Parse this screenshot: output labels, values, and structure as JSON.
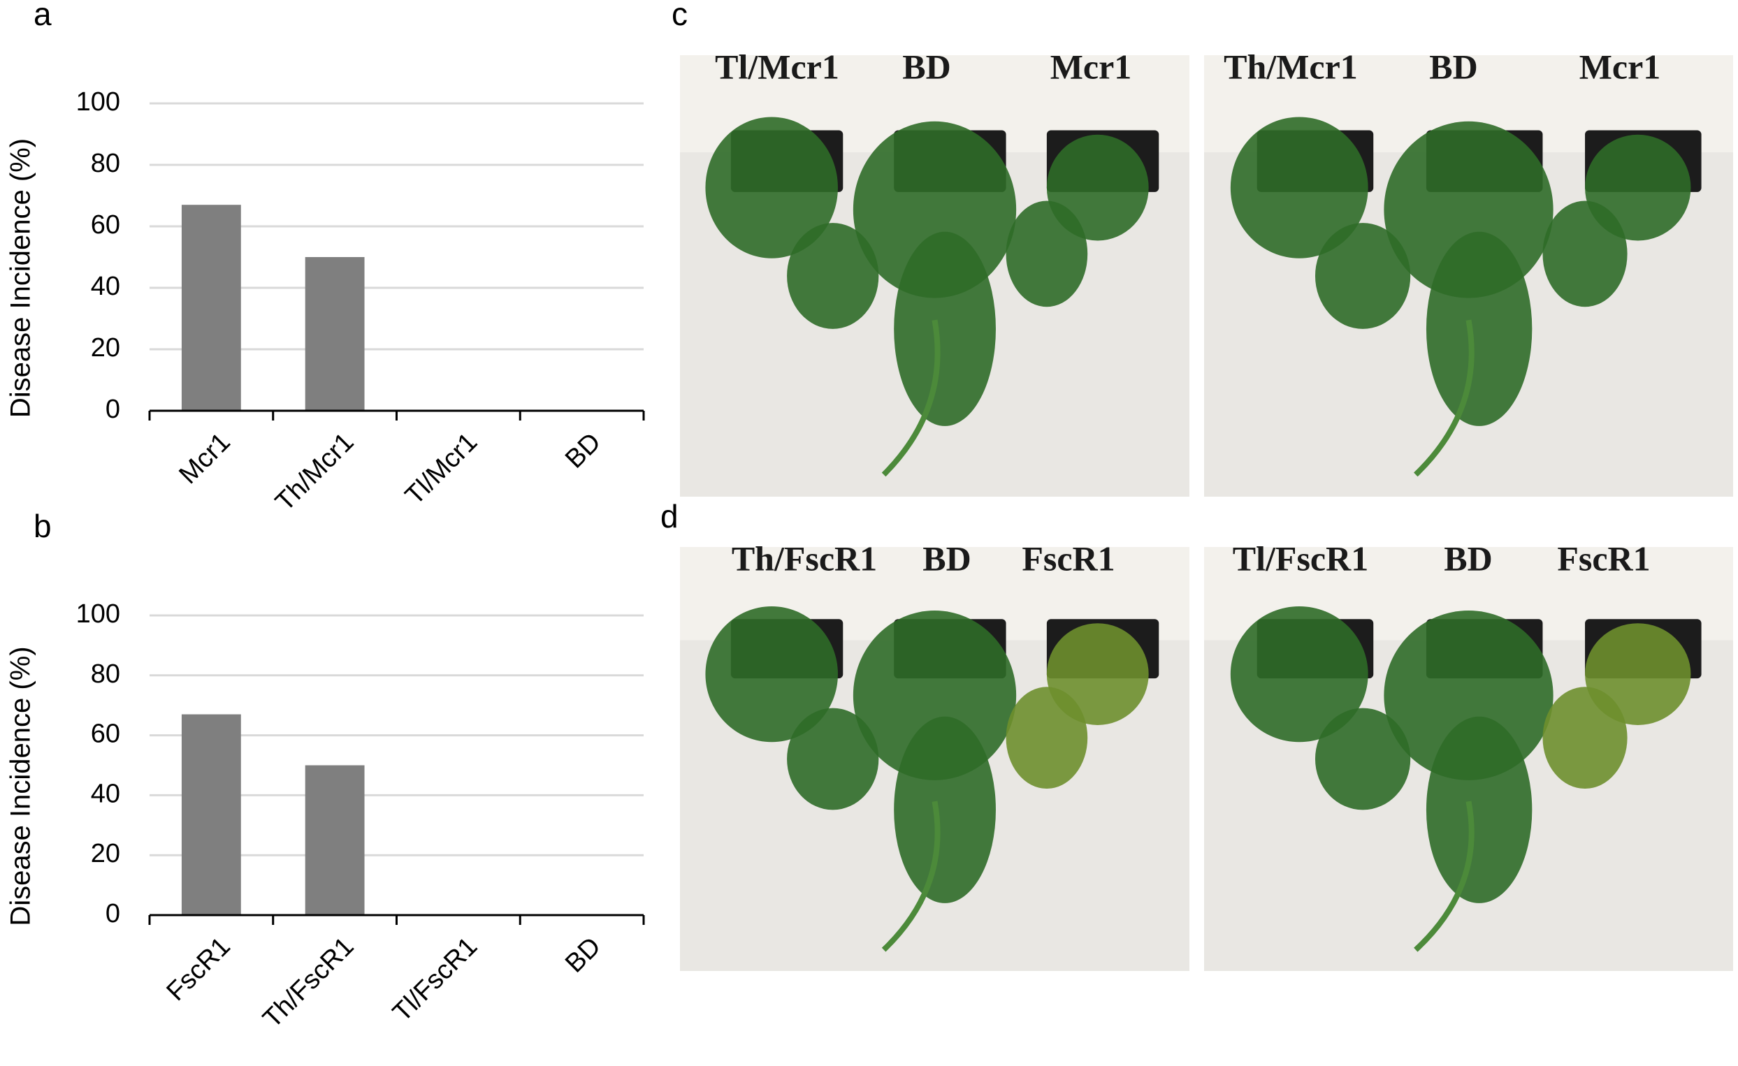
{
  "chart_data": [
    {
      "type": "bar",
      "panel": "a",
      "ylabel": "Disease Incidence (%)",
      "categories": [
        "Mcr1",
        "Th/Mcr1",
        "Tl/Mcr1",
        "BD"
      ],
      "values": [
        67,
        50,
        0,
        0
      ],
      "color": "#7f7f7f",
      "ylim": [
        0,
        100
      ],
      "yticks": [
        0,
        20,
        40,
        60,
        80,
        100
      ],
      "grid": true
    },
    {
      "type": "bar",
      "panel": "b",
      "ylabel": "Disease Incidence (%)",
      "categories": [
        "FscR1",
        "Th/FscR1",
        "Tl/FscR1",
        "BD"
      ],
      "values": [
        67,
        50,
        0,
        0
      ],
      "color": "#7f7f7f",
      "ylim": [
        0,
        100
      ],
      "yticks": [
        0,
        20,
        40,
        60,
        80,
        100
      ],
      "grid": true
    }
  ],
  "photo_panels": [
    {
      "panel": "c",
      "photos": [
        {
          "labels": [
            "Tl/Mcr1",
            "BD",
            "Mcr1"
          ]
        },
        {
          "labels": [
            "Th/Mcr1",
            "BD",
            "Mcr1"
          ]
        }
      ]
    },
    {
      "panel": "d",
      "photos": [
        {
          "labels": [
            "Th/FscR1",
            "BD",
            "FscR1"
          ]
        },
        {
          "labels": [
            "Tl/FscR1",
            "BD",
            "FscR1"
          ]
        }
      ]
    }
  ]
}
